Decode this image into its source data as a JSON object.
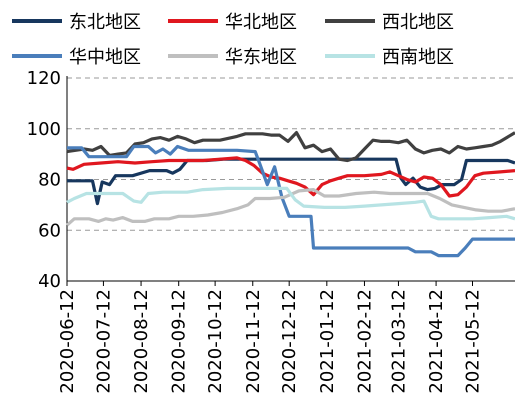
{
  "chart_data": {
    "type": "line",
    "title": "",
    "xlabel": "",
    "ylabel": "",
    "ylim": [
      40,
      120
    ],
    "yticks": [
      40,
      60,
      80,
      100,
      120
    ],
    "grid": "horizontal-dashed",
    "legend_position": "top",
    "x_start": "2020-06-12",
    "x_end": "2021-06-16",
    "xtick_labels": [
      "2020-06-12",
      "2020-07-12",
      "2020-08-12",
      "2020-09-12",
      "2020-10-12",
      "2020-11-12",
      "2020-12-12",
      "2021-01-12",
      "2021-02-12",
      "2021-03-12",
      "2021-04-12",
      "2021-05-12"
    ],
    "series": [
      {
        "name": "东北地区",
        "color": "#17375E",
        "points": [
          [
            "2020-06-12",
            79.5
          ],
          [
            "2020-06-26",
            79.5
          ],
          [
            "2020-07-03",
            79.5
          ],
          [
            "2020-07-07",
            70.5
          ],
          [
            "2020-07-11",
            79
          ],
          [
            "2020-07-17",
            78
          ],
          [
            "2020-07-22",
            81.5
          ],
          [
            "2020-08-05",
            81.5
          ],
          [
            "2020-08-19",
            83.5
          ],
          [
            "2020-09-02",
            83.5
          ],
          [
            "2020-09-07",
            82.5
          ],
          [
            "2020-09-13",
            84
          ],
          [
            "2020-09-19",
            87.5
          ],
          [
            "2020-10-05",
            87.5
          ],
          [
            "2020-10-19",
            88
          ],
          [
            "2020-11-02",
            88
          ],
          [
            "2020-11-18",
            88
          ],
          [
            "2020-12-10",
            88
          ],
          [
            "2021-01-10",
            88
          ],
          [
            "2021-02-10",
            88
          ],
          [
            "2021-03-10",
            88
          ],
          [
            "2021-03-14",
            80.5
          ],
          [
            "2021-03-18",
            78
          ],
          [
            "2021-03-24",
            80.5
          ],
          [
            "2021-03-30",
            77
          ],
          [
            "2021-04-05",
            76
          ],
          [
            "2021-04-11",
            76.5
          ],
          [
            "2021-04-17",
            78
          ],
          [
            "2021-04-27",
            78
          ],
          [
            "2021-05-03",
            80
          ],
          [
            "2021-05-07",
            87.5
          ],
          [
            "2021-06-10",
            87.5
          ],
          [
            "2021-06-16",
            86.5
          ]
        ]
      },
      {
        "name": "华北地区",
        "color": "#E0171F",
        "points": [
          [
            "2020-06-12",
            84.5
          ],
          [
            "2020-06-17",
            84
          ],
          [
            "2020-06-26",
            86
          ],
          [
            "2020-07-10",
            86.5
          ],
          [
            "2020-07-24",
            87
          ],
          [
            "2020-08-07",
            86.5
          ],
          [
            "2020-08-21",
            87
          ],
          [
            "2020-09-04",
            87.5
          ],
          [
            "2020-09-18",
            87.5
          ],
          [
            "2020-10-02",
            87.5
          ],
          [
            "2020-10-16",
            88
          ],
          [
            "2020-10-30",
            88.5
          ],
          [
            "2020-11-06",
            87.5
          ],
          [
            "2020-11-13",
            85.5
          ],
          [
            "2020-11-20",
            82.5
          ],
          [
            "2020-11-27",
            81
          ],
          [
            "2020-12-04",
            80.5
          ],
          [
            "2020-12-11",
            79.5
          ],
          [
            "2020-12-18",
            78.5
          ],
          [
            "2020-12-25",
            77
          ],
          [
            "2021-01-01",
            74
          ],
          [
            "2021-01-08",
            78
          ],
          [
            "2021-01-15",
            79.5
          ],
          [
            "2021-01-22",
            80.5
          ],
          [
            "2021-01-29",
            81.5
          ],
          [
            "2021-02-12",
            81.5
          ],
          [
            "2021-02-26",
            82
          ],
          [
            "2021-03-05",
            83
          ],
          [
            "2021-03-12",
            81.5
          ],
          [
            "2021-03-19",
            80
          ],
          [
            "2021-03-26",
            79
          ],
          [
            "2021-04-02",
            81
          ],
          [
            "2021-04-09",
            80.5
          ],
          [
            "2021-04-16",
            78
          ],
          [
            "2021-04-23",
            73.5
          ],
          [
            "2021-04-30",
            74
          ],
          [
            "2021-05-07",
            77
          ],
          [
            "2021-05-14",
            81.5
          ],
          [
            "2021-05-21",
            82.5
          ],
          [
            "2021-06-04",
            83
          ],
          [
            "2021-06-16",
            83.5
          ]
        ]
      },
      {
        "name": "西北地区",
        "color": "#404040",
        "points": [
          [
            "2020-06-12",
            91
          ],
          [
            "2020-06-26",
            92
          ],
          [
            "2020-07-03",
            91.5
          ],
          [
            "2020-07-10",
            93
          ],
          [
            "2020-07-17",
            89.5
          ],
          [
            "2020-07-24",
            90
          ],
          [
            "2020-07-31",
            90.5
          ],
          [
            "2020-08-07",
            94
          ],
          [
            "2020-08-14",
            94.5
          ],
          [
            "2020-08-21",
            96
          ],
          [
            "2020-08-28",
            96.5
          ],
          [
            "2020-09-04",
            95.5
          ],
          [
            "2020-09-11",
            97
          ],
          [
            "2020-09-18",
            96
          ],
          [
            "2020-09-25",
            94.5
          ],
          [
            "2020-10-02",
            95.5
          ],
          [
            "2020-10-16",
            95.5
          ],
          [
            "2020-10-30",
            97
          ],
          [
            "2020-11-06",
            98
          ],
          [
            "2020-11-20",
            98
          ],
          [
            "2020-11-27",
            97.5
          ],
          [
            "2020-12-04",
            97.5
          ],
          [
            "2020-12-11",
            95
          ],
          [
            "2020-12-18",
            98.5
          ],
          [
            "2020-12-25",
            92.5
          ],
          [
            "2021-01-01",
            93.5
          ],
          [
            "2021-01-08",
            91
          ],
          [
            "2021-01-15",
            92
          ],
          [
            "2021-01-22",
            88
          ],
          [
            "2021-01-29",
            87.5
          ],
          [
            "2021-02-05",
            88.5
          ],
          [
            "2021-02-12",
            92
          ],
          [
            "2021-02-19",
            95.5
          ],
          [
            "2021-02-26",
            95
          ],
          [
            "2021-03-05",
            95
          ],
          [
            "2021-03-12",
            94.5
          ],
          [
            "2021-03-19",
            95.5
          ],
          [
            "2021-03-26",
            92
          ],
          [
            "2021-04-02",
            90.5
          ],
          [
            "2021-04-09",
            91.5
          ],
          [
            "2021-04-16",
            92
          ],
          [
            "2021-04-23",
            90.5
          ],
          [
            "2021-04-30",
            93
          ],
          [
            "2021-05-07",
            92
          ],
          [
            "2021-05-14",
            92.5
          ],
          [
            "2021-05-21",
            93
          ],
          [
            "2021-05-28",
            93.5
          ],
          [
            "2021-06-04",
            95
          ],
          [
            "2021-06-16",
            98.5
          ]
        ]
      },
      {
        "name": "华中地区",
        "color": "#4A7EBB",
        "points": [
          [
            "2020-06-12",
            92.5
          ],
          [
            "2020-06-24",
            92.5
          ],
          [
            "2020-06-30",
            89
          ],
          [
            "2020-07-20",
            89
          ],
          [
            "2020-07-31",
            89
          ],
          [
            "2020-08-06",
            93
          ],
          [
            "2020-08-18",
            93
          ],
          [
            "2020-08-24",
            90.5
          ],
          [
            "2020-08-30",
            92
          ],
          [
            "2020-09-05",
            90
          ],
          [
            "2020-09-11",
            93
          ],
          [
            "2020-09-20",
            91.5
          ],
          [
            "2020-10-10",
            91.5
          ],
          [
            "2020-10-30",
            91.5
          ],
          [
            "2020-11-14",
            91
          ],
          [
            "2020-11-18",
            86
          ],
          [
            "2020-11-24",
            78
          ],
          [
            "2020-11-30",
            85
          ],
          [
            "2020-12-06",
            73
          ],
          [
            "2020-12-12",
            65.5
          ],
          [
            "2020-12-30",
            65.5
          ],
          [
            "2021-01-01",
            53
          ],
          [
            "2021-02-01",
            53
          ],
          [
            "2021-03-01",
            53
          ],
          [
            "2021-03-20",
            53
          ],
          [
            "2021-03-26",
            51.5
          ],
          [
            "2021-04-08",
            51.5
          ],
          [
            "2021-04-14",
            50
          ],
          [
            "2021-04-30",
            50
          ],
          [
            "2021-05-06",
            53
          ],
          [
            "2021-05-12",
            56.5
          ],
          [
            "2021-06-16",
            56.5
          ]
        ]
      },
      {
        "name": "华东地区",
        "color": "#BFBFBF",
        "points": [
          [
            "2020-06-12",
            62
          ],
          [
            "2020-06-18",
            64.5
          ],
          [
            "2020-06-30",
            64.5
          ],
          [
            "2020-07-08",
            63.5
          ],
          [
            "2020-07-14",
            64.5
          ],
          [
            "2020-07-20",
            64
          ],
          [
            "2020-07-28",
            65
          ],
          [
            "2020-08-05",
            63.5
          ],
          [
            "2020-08-15",
            63.5
          ],
          [
            "2020-08-23",
            64.5
          ],
          [
            "2020-09-04",
            64.5
          ],
          [
            "2020-09-12",
            65.5
          ],
          [
            "2020-09-24",
            65.5
          ],
          [
            "2020-10-06",
            66
          ],
          [
            "2020-10-18",
            67
          ],
          [
            "2020-10-30",
            68.5
          ],
          [
            "2020-11-08",
            70
          ],
          [
            "2020-11-14",
            72.5
          ],
          [
            "2020-11-26",
            72.5
          ],
          [
            "2020-12-08",
            73
          ],
          [
            "2020-12-20",
            75.5
          ],
          [
            "2021-01-01",
            76
          ],
          [
            "2021-01-10",
            73.5
          ],
          [
            "2021-01-22",
            73.5
          ],
          [
            "2021-02-05",
            74.5
          ],
          [
            "2021-02-20",
            75
          ],
          [
            "2021-03-05",
            74.5
          ],
          [
            "2021-03-20",
            74.5
          ],
          [
            "2021-04-05",
            74.5
          ],
          [
            "2021-04-15",
            72.5
          ],
          [
            "2021-04-25",
            70
          ],
          [
            "2021-05-05",
            69
          ],
          [
            "2021-05-15",
            68
          ],
          [
            "2021-05-25",
            67.5
          ],
          [
            "2021-06-05",
            67.5
          ],
          [
            "2021-06-16",
            68.5
          ]
        ]
      },
      {
        "name": "西南地区",
        "color": "#B7E3E4",
        "points": [
          [
            "2020-06-12",
            71
          ],
          [
            "2020-06-18",
            72.5
          ],
          [
            "2020-06-28",
            74.5
          ],
          [
            "2020-07-28",
            74.5
          ],
          [
            "2020-08-06",
            71.5
          ],
          [
            "2020-08-12",
            71
          ],
          [
            "2020-08-18",
            74.5
          ],
          [
            "2020-08-30",
            75
          ],
          [
            "2020-09-19",
            75
          ],
          [
            "2020-10-02",
            76
          ],
          [
            "2020-10-22",
            76.5
          ],
          [
            "2020-11-10",
            76.5
          ],
          [
            "2020-11-25",
            76.5
          ],
          [
            "2020-12-10",
            76.5
          ],
          [
            "2020-12-17",
            72
          ],
          [
            "2020-12-24",
            69.5
          ],
          [
            "2021-01-10",
            69
          ],
          [
            "2021-01-27",
            69
          ],
          [
            "2021-02-12",
            69.5
          ],
          [
            "2021-02-26",
            70
          ],
          [
            "2021-03-12",
            70.5
          ],
          [
            "2021-03-26",
            71
          ],
          [
            "2021-04-02",
            71.5
          ],
          [
            "2021-04-08",
            65.5
          ],
          [
            "2021-04-14",
            64.5
          ],
          [
            "2021-04-28",
            64.5
          ],
          [
            "2021-05-12",
            64.5
          ],
          [
            "2021-05-26",
            65
          ],
          [
            "2021-06-09",
            65.5
          ],
          [
            "2021-06-16",
            64.5
          ]
        ]
      }
    ]
  }
}
